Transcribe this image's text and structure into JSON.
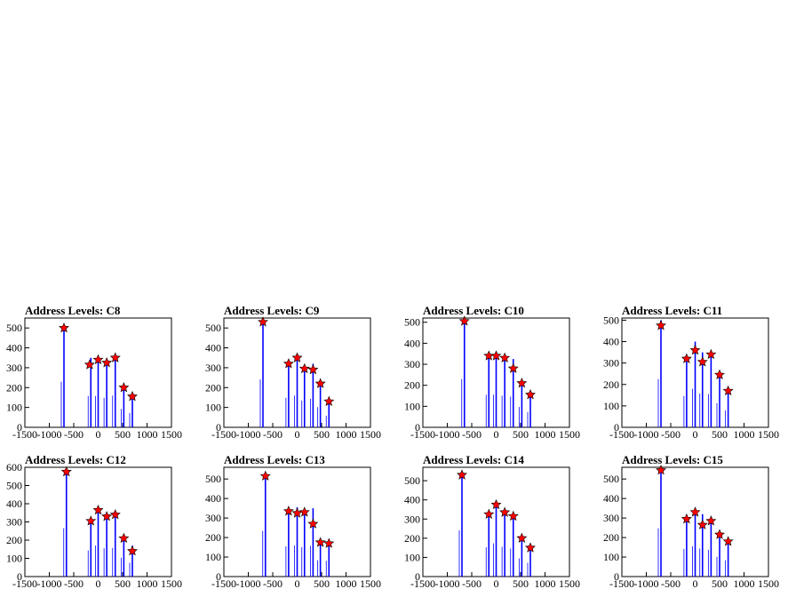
{
  "chart_data": [
    {
      "type": "bar",
      "title": "Address Levels: C8",
      "xlim": [
        -1500,
        1500
      ],
      "ylim": [
        0,
        550
      ],
      "xticks": [
        "-1500",
        "-1000",
        "-500",
        "0",
        "500",
        "1000",
        "1500"
      ],
      "yticks": [
        "0",
        "100",
        "200",
        "300",
        "400",
        "500"
      ],
      "bars": [
        {
          "x": -700,
          "y": 510
        },
        {
          "x": -150,
          "y": 350
        },
        {
          "x": 0,
          "y": 350
        },
        {
          "x": 175,
          "y": 330
        },
        {
          "x": 350,
          "y": 355
        },
        {
          "x": 525,
          "y": 205
        },
        {
          "x": 700,
          "y": 160
        }
      ],
      "markers": [
        {
          "x": -700,
          "y": 500
        },
        {
          "x": -175,
          "y": 315
        },
        {
          "x": 0,
          "y": 340
        },
        {
          "x": 175,
          "y": 325
        },
        {
          "x": 350,
          "y": 350
        },
        {
          "x": 525,
          "y": 200
        },
        {
          "x": 700,
          "y": 155
        }
      ],
      "series_color": "#0000ff",
      "marker_color": "#ff0000"
    },
    {
      "type": "bar",
      "title": "Address Levels: C9",
      "xlim": [
        -1500,
        1500
      ],
      "ylim": [
        0,
        550
      ],
      "xticks": [
        "-1500",
        "-1000",
        "-500",
        "0",
        "500",
        "1000",
        "1500"
      ],
      "yticks": [
        "0",
        "100",
        "200",
        "300",
        "400",
        "500"
      ],
      "bars": [
        {
          "x": -700,
          "y": 535
        },
        {
          "x": -175,
          "y": 330
        },
        {
          "x": 0,
          "y": 355
        },
        {
          "x": 150,
          "y": 300
        },
        {
          "x": 325,
          "y": 320
        },
        {
          "x": 475,
          "y": 225
        },
        {
          "x": 650,
          "y": 130
        }
      ],
      "markers": [
        {
          "x": -700,
          "y": 530
        },
        {
          "x": -175,
          "y": 320
        },
        {
          "x": 0,
          "y": 350
        },
        {
          "x": 150,
          "y": 295
        },
        {
          "x": 325,
          "y": 290
        },
        {
          "x": 475,
          "y": 220
        },
        {
          "x": 650,
          "y": 130
        }
      ],
      "series_color": "#0000ff",
      "marker_color": "#ff0000"
    },
    {
      "type": "bar",
      "title": "Address Levels: C10",
      "xlim": [
        -1500,
        1500
      ],
      "ylim": [
        0,
        520
      ],
      "xticks": [
        "-1500",
        "-1000",
        "-500",
        "0",
        "500",
        "1000",
        "1500"
      ],
      "yticks": [
        "0",
        "100",
        "200",
        "300",
        "400",
        "500"
      ],
      "bars": [
        {
          "x": -650,
          "y": 510
        },
        {
          "x": -150,
          "y": 345
        },
        {
          "x": 0,
          "y": 345
        },
        {
          "x": 175,
          "y": 335
        },
        {
          "x": 350,
          "y": 325
        },
        {
          "x": 525,
          "y": 215
        },
        {
          "x": 700,
          "y": 160
        }
      ],
      "markers": [
        {
          "x": -650,
          "y": 505
        },
        {
          "x": -150,
          "y": 340
        },
        {
          "x": 0,
          "y": 340
        },
        {
          "x": 175,
          "y": 330
        },
        {
          "x": 350,
          "y": 280
        },
        {
          "x": 525,
          "y": 210
        },
        {
          "x": 700,
          "y": 155
        }
      ],
      "series_color": "#0000ff",
      "marker_color": "#ff0000"
    },
    {
      "type": "bar",
      "title": "Address Levels: C11",
      "xlim": [
        -1500,
        1500
      ],
      "ylim": [
        0,
        510
      ],
      "xticks": [
        "-1500",
        "-1000",
        "-500",
        "0",
        "500",
        "1000",
        "1500"
      ],
      "yticks": [
        "0",
        "100",
        "200",
        "300",
        "400",
        "500"
      ],
      "bars": [
        {
          "x": -700,
          "y": 500
        },
        {
          "x": -175,
          "y": 325
        },
        {
          "x": 0,
          "y": 400
        },
        {
          "x": 150,
          "y": 350
        },
        {
          "x": 325,
          "y": 345
        },
        {
          "x": 500,
          "y": 250
        },
        {
          "x": 675,
          "y": 175
        }
      ],
      "markers": [
        {
          "x": -700,
          "y": 475
        },
        {
          "x": -175,
          "y": 320
        },
        {
          "x": 0,
          "y": 360
        },
        {
          "x": 150,
          "y": 305
        },
        {
          "x": 325,
          "y": 340
        },
        {
          "x": 500,
          "y": 245
        },
        {
          "x": 675,
          "y": 170
        }
      ],
      "series_color": "#0000ff",
      "marker_color": "#ff0000"
    },
    {
      "type": "bar",
      "title": "Address Levels: C12",
      "xlim": [
        -1500,
        1500
      ],
      "ylim": [
        0,
        600
      ],
      "xticks": [
        "-1500",
        "-1000",
        "-500",
        "0",
        "500",
        "1000",
        "1500"
      ],
      "yticks": [
        "0",
        "100",
        "200",
        "300",
        "400",
        "500",
        "600"
      ],
      "bars": [
        {
          "x": -650,
          "y": 590
        },
        {
          "x": -150,
          "y": 320
        },
        {
          "x": 0,
          "y": 380
        },
        {
          "x": 175,
          "y": 345
        },
        {
          "x": 350,
          "y": 350
        },
        {
          "x": 525,
          "y": 230
        },
        {
          "x": 700,
          "y": 170
        }
      ],
      "markers": [
        {
          "x": -650,
          "y": 575
        },
        {
          "x": -150,
          "y": 305
        },
        {
          "x": 0,
          "y": 365
        },
        {
          "x": 175,
          "y": 330
        },
        {
          "x": 350,
          "y": 340
        },
        {
          "x": 525,
          "y": 210
        },
        {
          "x": 700,
          "y": 140
        }
      ],
      "series_color": "#0000ff",
      "marker_color": "#ff0000"
    },
    {
      "type": "bar",
      "title": "Address Levels: C13",
      "xlim": [
        -1500,
        1500
      ],
      "ylim": [
        0,
        560
      ],
      "xticks": [
        "-1500",
        "-1000",
        "-500",
        "0",
        "500",
        "1000",
        "1500"
      ],
      "yticks": [
        "0",
        "100",
        "200",
        "300",
        "400",
        "500"
      ],
      "bars": [
        {
          "x": -650,
          "y": 520
        },
        {
          "x": -175,
          "y": 345
        },
        {
          "x": 0,
          "y": 355
        },
        {
          "x": 150,
          "y": 335
        },
        {
          "x": 325,
          "y": 350
        },
        {
          "x": 475,
          "y": 185
        },
        {
          "x": 650,
          "y": 180
        }
      ],
      "markers": [
        {
          "x": -650,
          "y": 515
        },
        {
          "x": -175,
          "y": 335
        },
        {
          "x": 0,
          "y": 325
        },
        {
          "x": 150,
          "y": 330
        },
        {
          "x": 325,
          "y": 270
        },
        {
          "x": 475,
          "y": 175
        },
        {
          "x": 650,
          "y": 170
        }
      ],
      "series_color": "#0000ff",
      "marker_color": "#ff0000"
    },
    {
      "type": "bar",
      "title": "Address Levels: C14",
      "xlim": [
        -1500,
        1500
      ],
      "ylim": [
        0,
        570
      ],
      "xticks": [
        "-1500",
        "-1000",
        "-500",
        "0",
        "500",
        "1000",
        "1500"
      ],
      "yticks": [
        "0",
        "100",
        "200",
        "300",
        "400",
        "500"
      ],
      "bars": [
        {
          "x": -700,
          "y": 535
        },
        {
          "x": -150,
          "y": 340
        },
        {
          "x": 0,
          "y": 385
        },
        {
          "x": 175,
          "y": 345
        },
        {
          "x": 350,
          "y": 325
        },
        {
          "x": 525,
          "y": 210
        },
        {
          "x": 700,
          "y": 160
        }
      ],
      "markers": [
        {
          "x": -700,
          "y": 530
        },
        {
          "x": -150,
          "y": 325
        },
        {
          "x": 0,
          "y": 375
        },
        {
          "x": 175,
          "y": 335
        },
        {
          "x": 350,
          "y": 315
        },
        {
          "x": 525,
          "y": 200
        },
        {
          "x": 700,
          "y": 150
        }
      ],
      "series_color": "#0000ff",
      "marker_color": "#ff0000"
    },
    {
      "type": "bar",
      "title": "Address Levels: C15",
      "xlim": [
        -1500,
        1500
      ],
      "ylim": [
        0,
        560
      ],
      "xticks": [
        "-1500",
        "-1000",
        "-500",
        "0",
        "500",
        "1000",
        "1500"
      ],
      "yticks": [
        "0",
        "100",
        "200",
        "300",
        "400",
        "500"
      ],
      "bars": [
        {
          "x": -700,
          "y": 550
        },
        {
          "x": -175,
          "y": 315
        },
        {
          "x": 0,
          "y": 345
        },
        {
          "x": 150,
          "y": 320
        },
        {
          "x": 325,
          "y": 305
        },
        {
          "x": 500,
          "y": 225
        },
        {
          "x": 675,
          "y": 185
        }
      ],
      "markers": [
        {
          "x": -700,
          "y": 545
        },
        {
          "x": -175,
          "y": 295
        },
        {
          "x": 0,
          "y": 330
        },
        {
          "x": 150,
          "y": 265
        },
        {
          "x": 325,
          "y": 285
        },
        {
          "x": 500,
          "y": 215
        },
        {
          "x": 675,
          "y": 180
        }
      ],
      "series_color": "#0000ff",
      "marker_color": "#ff0000"
    }
  ]
}
